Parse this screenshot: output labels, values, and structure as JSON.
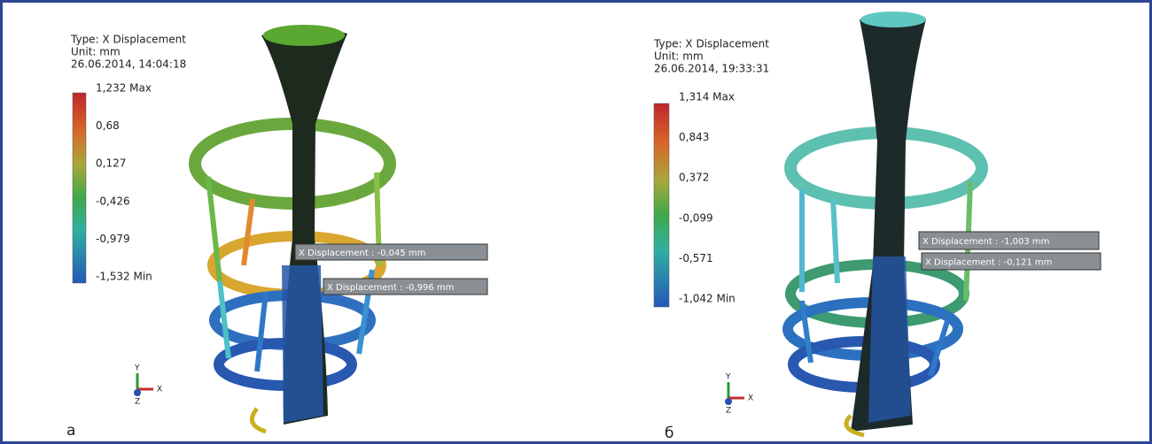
{
  "panels": [
    {
      "label": "а",
      "legend": {
        "type": "Type: X Displacement",
        "unit": "Unit: mm",
        "timestamp": "26.06.2014, 14:04:18",
        "scale": [
          "1,232 Max",
          "0,68",
          "0,127",
          "-0,426",
          "-0,979",
          "-1,532 Min"
        ]
      },
      "callouts": [
        "X Displacement : -0,045 mm",
        "X Displacement : -0,996 mm"
      ],
      "axes": [
        "Y",
        "X",
        "Z"
      ]
    },
    {
      "label": "б",
      "legend": {
        "type": "Type: X Displacement",
        "unit": "Unit: mm",
        "timestamp": "26.06.2014, 19:33:31",
        "scale": [
          "1,314 Max",
          "0,843",
          "0,372",
          "-0,099",
          "-0,571",
          "-1,042 Min"
        ]
      },
      "callouts": [
        "X Displacement : -1,003 mm",
        "X Displacement : -0,121 mm"
      ],
      "axes": [
        "Y",
        "X",
        "Z"
      ]
    }
  ]
}
